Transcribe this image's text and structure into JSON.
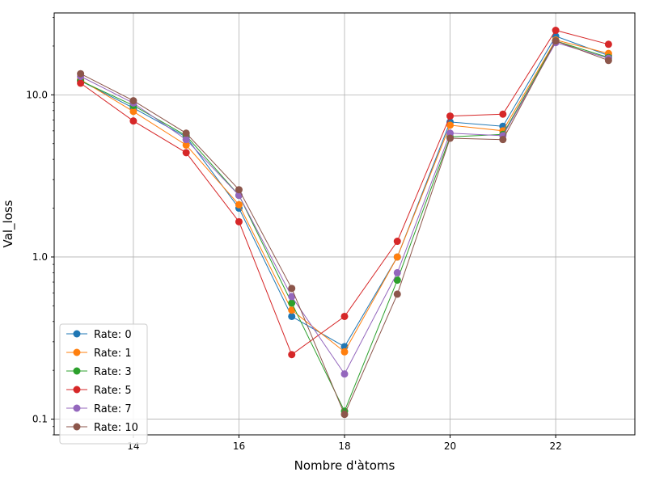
{
  "chart_data": {
    "type": "line",
    "title": "",
    "xlabel": "Nombre d'àtoms",
    "ylabel": "Val_loss",
    "yscale": "log",
    "xlim": [
      12.5,
      23.5
    ],
    "ylim": [
      0.08,
      32
    ],
    "xticks": [
      14,
      16,
      18,
      20,
      22
    ],
    "yticks": [
      0.1,
      1.0,
      10.0
    ],
    "xtick_labels": [
      "14",
      "16",
      "18",
      "20",
      "22"
    ],
    "ytick_labels": [
      "0.1",
      "1.0",
      "10.0"
    ],
    "grid": true,
    "legend_position": "lower-left",
    "x": [
      13,
      14,
      15,
      16,
      17,
      18,
      19,
      20,
      21,
      22,
      23
    ],
    "series": [
      {
        "name": "Rate: 0",
        "color": "#1f77b4",
        "values": [
          12.2,
          8.3,
          5.5,
          2.0,
          0.43,
          0.28,
          1.0,
          6.8,
          6.4,
          23.0,
          17.5
        ]
      },
      {
        "name": "Rate: 1",
        "color": "#ff7f0e",
        "values": [
          12.4,
          7.9,
          4.9,
          2.1,
          0.47,
          0.26,
          1.0,
          6.5,
          6.0,
          21.8,
          18.0
        ]
      },
      {
        "name": "Rate: 3",
        "color": "#2ca02c",
        "values": [
          12.2,
          8.6,
          5.6,
          2.4,
          0.52,
          0.112,
          0.72,
          5.5,
          5.7,
          21.5,
          17.0
        ]
      },
      {
        "name": "Rate: 5",
        "color": "#d62728",
        "values": [
          11.8,
          6.9,
          4.4,
          1.65,
          0.25,
          0.43,
          1.25,
          7.4,
          7.6,
          25.0,
          20.5
        ]
      },
      {
        "name": "Rate: 7",
        "color": "#9467bd",
        "values": [
          13.0,
          8.9,
          5.3,
          2.4,
          0.57,
          0.19,
          0.8,
          5.8,
          5.6,
          21.0,
          16.8
        ]
      },
      {
        "name": "Rate: 10",
        "color": "#8c564b",
        "values": [
          13.5,
          9.2,
          5.8,
          2.6,
          0.64,
          0.107,
          0.59,
          5.4,
          5.3,
          21.5,
          16.3
        ]
      }
    ]
  }
}
